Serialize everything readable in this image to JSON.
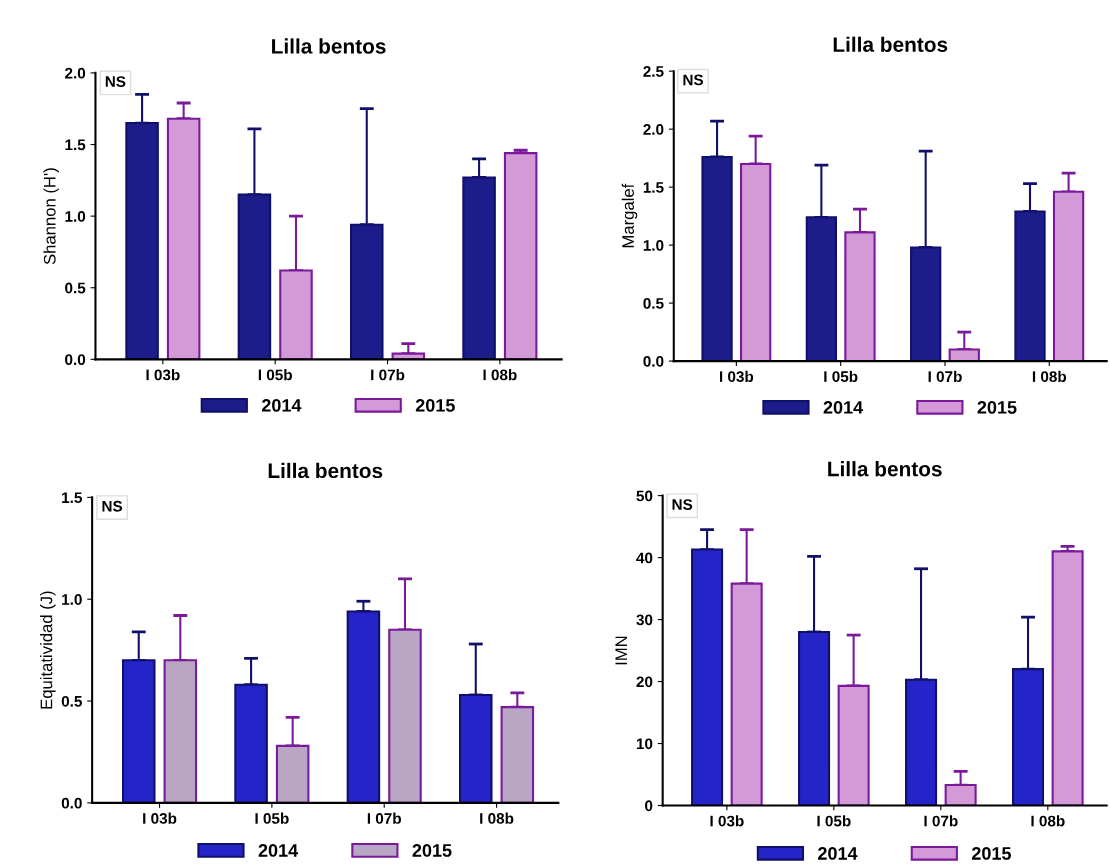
{
  "chart_data": [
    {
      "type": "bar",
      "title": "Lilla bentos",
      "ylabel": "Shannon (H')",
      "categories": [
        "I 03b",
        "I 05b",
        "I 07b",
        "I 08b"
      ],
      "ylim": [
        0,
        2
      ],
      "yticks": [
        {
          "value": 0,
          "label": "0.0"
        },
        0.5,
        {
          "value": 1,
          "label": "1.0"
        },
        1.5,
        {
          "value": 2,
          "label": "2.0"
        }
      ],
      "annotations": [
        "NS"
      ],
      "legend": "bottom",
      "grid": false,
      "series": [
        {
          "name": "2014",
          "color": "#1c1c8a",
          "values": [
            1.65,
            1.15,
            0.94,
            1.27
          ],
          "errors": [
            [
              1.65,
              1.85
            ],
            [
              1.15,
              1.61
            ],
            [
              0.94,
              1.75
            ],
            [
              1.27,
              1.4
            ]
          ]
        },
        {
          "name": "2015",
          "color": "#d49ad8",
          "values": [
            1.68,
            0.62,
            0.04,
            1.44
          ],
          "errors": [
            [
              1.68,
              1.79
            ],
            [
              0.62,
              1.0
            ],
            [
              0.04,
              0.11
            ],
            [
              1.44,
              1.46
            ]
          ]
        }
      ]
    },
    {
      "type": "bar",
      "title": "Lilla bentos",
      "ylabel": "Margalef",
      "categories": [
        "I 03b",
        "I 05b",
        "I 07b",
        "I 08b"
      ],
      "ylim": [
        0,
        2.5
      ],
      "yticks": [
        {
          "value": 0,
          "label": "0.0"
        },
        0.5,
        {
          "value": 1,
          "label": "1.0"
        },
        1.5,
        {
          "value": 2,
          "label": "2.0"
        },
        2.5
      ],
      "annotations": [
        "NS"
      ],
      "legend": "bottom",
      "grid": false,
      "series": [
        {
          "name": "2014",
          "color": "#1c1c8a",
          "values": [
            1.76,
            1.24,
            0.98,
            1.29
          ],
          "errors": [
            [
              1.76,
              2.07
            ],
            [
              1.24,
              1.69
            ],
            [
              0.98,
              1.81
            ],
            [
              1.29,
              1.53
            ]
          ]
        },
        {
          "name": "2015",
          "color": "#d49ad8",
          "values": [
            1.7,
            1.11,
            0.1,
            1.46
          ],
          "errors": [
            [
              1.7,
              1.94
            ],
            [
              1.11,
              1.31
            ],
            [
              0.1,
              0.25
            ],
            [
              1.46,
              1.62
            ]
          ]
        }
      ]
    },
    {
      "type": "bar",
      "title": "Lilla bentos",
      "ylabel": "Equitatividad (J)",
      "categories": [
        "I 03b",
        "I 05b",
        "I 07b",
        "I 08b"
      ],
      "ylim": [
        0,
        1.5
      ],
      "yticks": [
        {
          "value": 0,
          "label": "0.0"
        },
        0.5,
        {
          "value": 1,
          "label": "1.0"
        },
        1.5
      ],
      "annotations": [
        "NS"
      ],
      "legend": "bottom",
      "grid": false,
      "series": [
        {
          "name": "2014",
          "color": "#2424c8",
          "values": [
            0.7,
            0.58,
            0.94,
            0.53
          ],
          "errors": [
            [
              0.7,
              0.84
            ],
            [
              0.58,
              0.71
            ],
            [
              0.94,
              0.99
            ],
            [
              0.53,
              0.78
            ]
          ]
        },
        {
          "name": "2015",
          "color": "#b8a6c4",
          "values": [
            0.7,
            0.28,
            0.85,
            0.47
          ],
          "errors": [
            [
              0.7,
              0.92
            ],
            [
              0.28,
              0.42
            ],
            [
              0.85,
              1.1
            ],
            [
              0.47,
              0.54
            ]
          ]
        }
      ]
    },
    {
      "type": "bar",
      "title": "Lilla bentos",
      "ylabel": "IMN",
      "categories": [
        "I 03b",
        "I 05b",
        "I 07b",
        "I 08b"
      ],
      "ylim": [
        0,
        50
      ],
      "yticks": [
        0,
        10,
        20,
        30,
        40,
        50
      ],
      "annotations": [
        "NS"
      ],
      "legend": "bottom",
      "grid": false,
      "series": [
        {
          "name": "2014",
          "color": "#2424c8",
          "values": [
            41.3,
            28,
            20.3,
            22
          ],
          "errors": [
            [
              41.3,
              44.5
            ],
            [
              28,
              40.2
            ],
            [
              20.3,
              38.2
            ],
            [
              22,
              30.4
            ]
          ]
        },
        {
          "name": "2015",
          "color": "#d49ad8",
          "values": [
            35.8,
            19.3,
            3.3,
            41
          ],
          "errors": [
            [
              35.8,
              44.5
            ],
            [
              19.3,
              27.5
            ],
            [
              3.3,
              5.5
            ],
            [
              41,
              41.8
            ]
          ]
        }
      ]
    }
  ]
}
